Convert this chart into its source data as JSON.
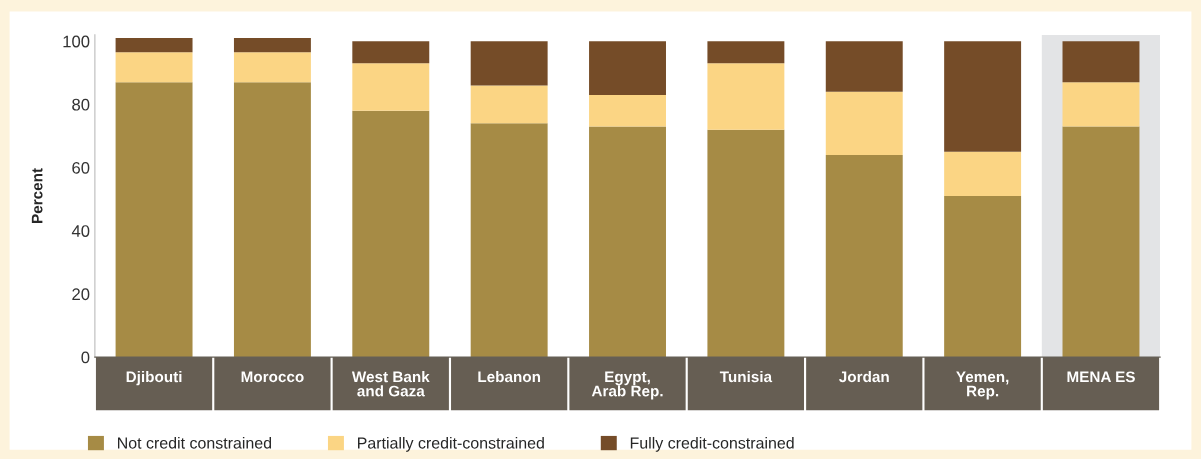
{
  "chart_data": {
    "type": "bar",
    "stacked": true,
    "ylabel": "Percent",
    "categories": [
      "Djibouti",
      "Morocco",
      "West Bank\nand Gaza",
      "Lebanon",
      "Egypt,\nArab Rep.",
      "Tunisia",
      "Jordan",
      "Yemen,\nRep.",
      "MENA ES"
    ],
    "series": [
      {
        "name": "Not credit constrained",
        "color": "#a68b45",
        "values": [
          87,
          87,
          78,
          74,
          73,
          72,
          64,
          51,
          73
        ]
      },
      {
        "name": "Partially credit-constrained",
        "color": "#fbd584",
        "values": [
          9.5,
          9.5,
          15,
          12,
          10,
          21,
          20,
          14,
          14
        ]
      },
      {
        "name": "Fully credit-constrained",
        "color": "#754c28",
        "values": [
          4.5,
          4.5,
          7,
          14,
          17,
          7,
          16,
          35,
          13
        ]
      }
    ],
    "ylim": [
      0,
      102
    ],
    "yticks": [
      0,
      20,
      40,
      60,
      80,
      100
    ],
    "bands": [
      {
        "axis": "x",
        "from": "MENA ES",
        "to": "MENA ES",
        "color": "#e3e4e6"
      }
    ],
    "grid": false,
    "legend": "bottom"
  }
}
